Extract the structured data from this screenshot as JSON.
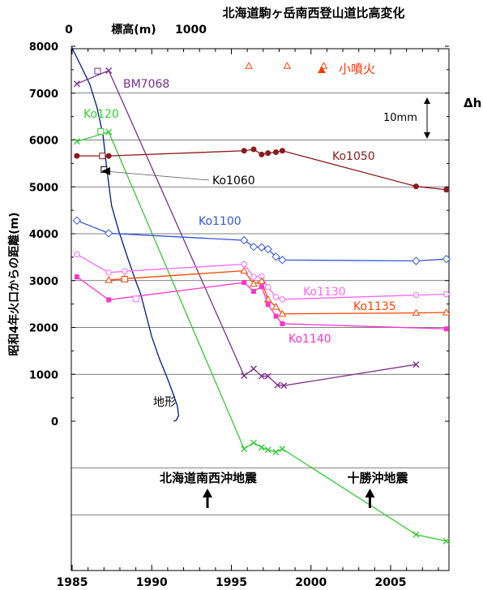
{
  "chart_data": {
    "type": "line",
    "title": "北海道駒ヶ岳南西登山道比高変化",
    "ylabel": "昭和4年火口からの距離(m)",
    "top_axis": {
      "label": "標高(m)",
      "ticks": [
        "0",
        "1000"
      ],
      "tick_values": [
        0,
        1000
      ]
    },
    "x_ticks": [
      1985,
      1990,
      1995,
      2000,
      2005
    ],
    "y_ticks": [
      0,
      1000,
      2000,
      3000,
      4000,
      5000,
      6000,
      7000,
      8000
    ],
    "xlim": [
      1985,
      2009
    ],
    "ylim": [
      -3100,
      8000
    ],
    "grid": true,
    "right_label": "Δh",
    "scale_label": "10mm",
    "legend": {
      "label": "小噴火",
      "color": "#ff3300"
    },
    "terrain_label": "地形",
    "events": [
      {
        "label": "北海道南西沖地震",
        "x": 1993.5
      },
      {
        "label": "十勝沖地震",
        "x": 2003.7
      }
    ],
    "eruptions": [
      {
        "x": 1996.1,
        "y": 7580
      },
      {
        "x": 1998.5,
        "y": 7580
      },
      {
        "x": 2000.8,
        "y": 7580
      }
    ],
    "terrain": [
      [
        0,
        8000
      ],
      [
        150,
        7200
      ],
      [
        210,
        6700
      ],
      [
        260,
        6100
      ],
      [
        290,
        5400
      ],
      [
        330,
        4600
      ],
      [
        390,
        4050
      ],
      [
        460,
        3500
      ],
      [
        520,
        3050
      ],
      [
        570,
        2700
      ],
      [
        610,
        2300
      ],
      [
        660,
        1800
      ],
      [
        720,
        1350
      ],
      [
        790,
        900
      ],
      [
        840,
        550
      ],
      [
        870,
        320
      ],
      [
        880,
        120
      ],
      [
        860,
        20
      ],
      [
        840,
        0
      ]
    ],
    "series": [
      {
        "name": "BM7068",
        "color": "#7b2f8e",
        "marker": "x",
        "x": [
          1985.3,
          1987.3,
          1995.8,
          1996.4,
          1996.9,
          1997.3,
          1997.9,
          1998.3,
          2006.6
        ],
        "y": [
          7200,
          7480,
          970,
          1120,
          960,
          960,
          770,
          760,
          1210
        ]
      },
      {
        "name": "Ko120",
        "color": "#33cc33",
        "marker": "x",
        "x": [
          1985.3,
          1987.3,
          1995.8,
          1996.4,
          1996.9,
          1997.3,
          1997.8,
          1998.2,
          2006.6,
          2008.5
        ],
        "y": [
          5970,
          6170,
          -590,
          -460,
          -560,
          -610,
          -660,
          -590,
          -2420,
          -2560
        ]
      },
      {
        "name": "Ko1050",
        "color": "#8b1a1a",
        "marker": "dot",
        "x": [
          1985.3,
          1987.3,
          1995.8,
          1996.4,
          1996.9,
          1997.3,
          1997.8,
          1998.2,
          2006.6,
          2008.5
        ],
        "y": [
          5660,
          5660,
          5770,
          5800,
          5690,
          5720,
          5740,
          5770,
          5010,
          4940
        ]
      },
      {
        "name": "Ko1060",
        "color": "#000000",
        "marker": "square",
        "label_only": true,
        "x": [],
        "y": []
      },
      {
        "name": "Ko1100",
        "color": "#3355dd",
        "marker": "diamond",
        "x": [
          1985.3,
          1987.3,
          1995.8,
          1996.4,
          1996.9,
          1997.3,
          1997.8,
          1998.2,
          2006.6,
          2008.5
        ],
        "y": [
          4280,
          4010,
          3860,
          3720,
          3710,
          3670,
          3510,
          3440,
          3420,
          3460
        ]
      },
      {
        "name": "Ko1130",
        "color": "#ff66ff",
        "marker": "circle",
        "x": [
          1985.3,
          1987.3,
          1988.3,
          1995.8,
          1996.4,
          1996.9,
          1997.3,
          1997.8,
          1998.2,
          2006.6,
          2008.5
        ],
        "y": [
          3560,
          3170,
          3200,
          3350,
          3080,
          3090,
          2860,
          2650,
          2600,
          2690,
          2710
        ]
      },
      {
        "name": "Ko1135",
        "color": "#ff4400",
        "marker": "triangle",
        "x": [
          1987.3,
          1988.3,
          1995.8,
          1996.4,
          1996.9,
          1997.3,
          1997.8,
          1998.2,
          2006.6,
          2008.5
        ],
        "y": [
          3010,
          3040,
          3210,
          2930,
          2990,
          2600,
          2440,
          2290,
          2310,
          2320
        ]
      },
      {
        "name": "Ko1140",
        "color": "#ff33cc",
        "marker": "filled-square",
        "x": [
          1985.3,
          1987.3,
          1995.8,
          1996.4,
          1996.9,
          1997.3,
          1997.8,
          1998.2,
          2008.5
        ],
        "y": [
          3080,
          2590,
          2960,
          2770,
          2870,
          2490,
          2240,
          2080,
          1970
        ]
      }
    ]
  }
}
